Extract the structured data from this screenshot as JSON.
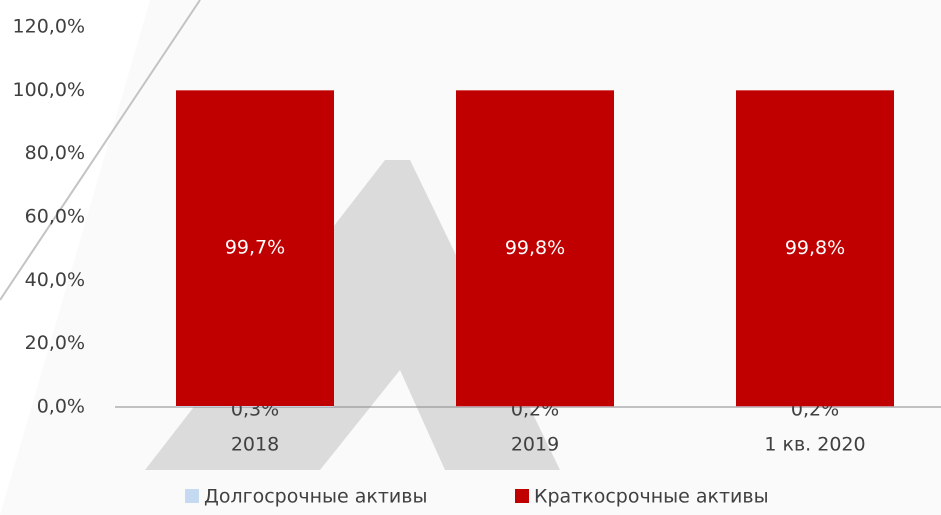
{
  "chart_data": {
    "type": "stacked_bar",
    "categories": [
      "2018",
      "2019",
      "1 кв. 2020"
    ],
    "series": [
      {
        "name": "Долгосрочные активы",
        "color": "#c5d9f1",
        "values": [
          0.3,
          0.2,
          0.2
        ],
        "value_labels": [
          "0,3%",
          "0,2%",
          "0,2%"
        ]
      },
      {
        "name": "Краткосрочные активы",
        "color": "#c00000",
        "values": [
          99.7,
          99.8,
          99.8
        ],
        "value_labels": [
          "99,7%",
          "99,8%",
          "99,8%"
        ]
      }
    ],
    "ylim": [
      0,
      120
    ],
    "yticks": [
      {
        "value": 0,
        "label": "0,0%"
      },
      {
        "value": 20,
        "label": "20,0%"
      },
      {
        "value": 40,
        "label": "40,0%"
      },
      {
        "value": 60,
        "label": "60,0%"
      },
      {
        "value": 80,
        "label": "80,0%"
      },
      {
        "value": 100,
        "label": "100,0%"
      },
      {
        "value": 120,
        "label": "120,0%"
      }
    ],
    "legend": "bottom"
  }
}
